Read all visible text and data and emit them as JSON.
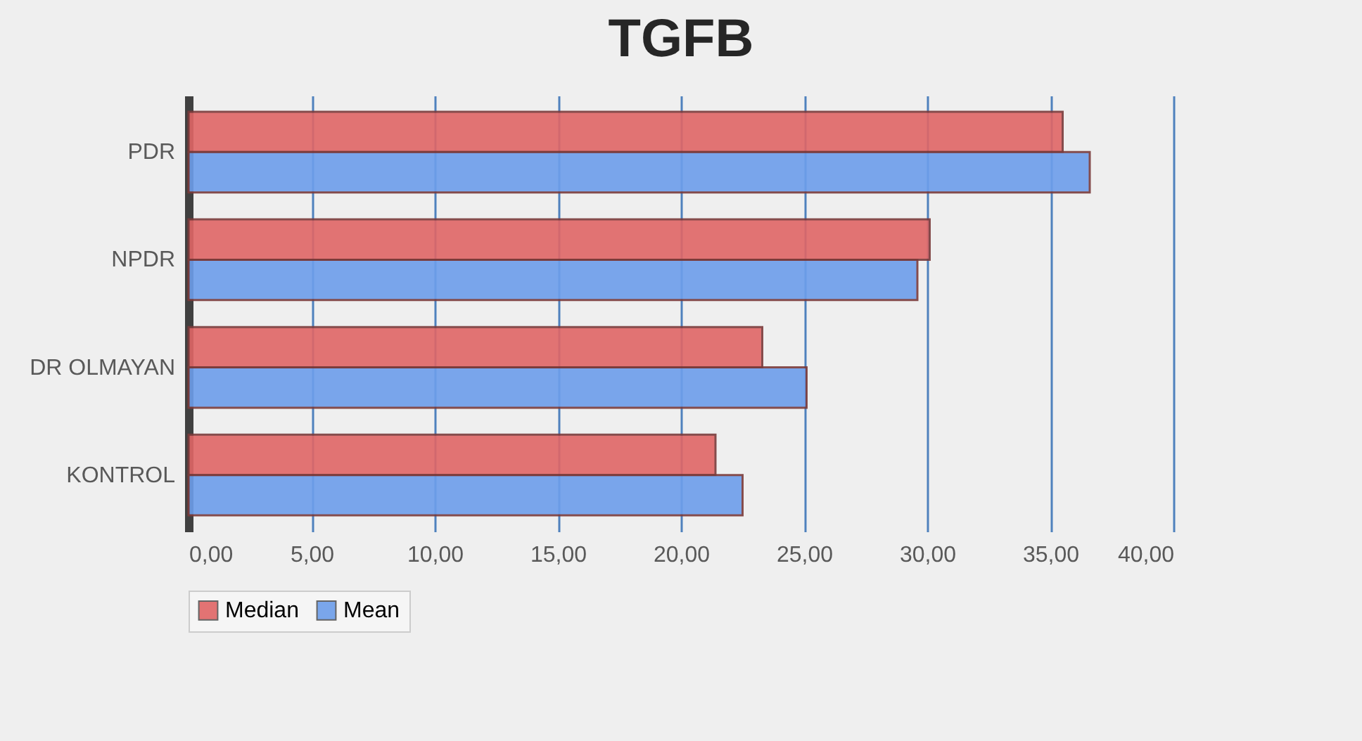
{
  "chart_data": {
    "type": "bar",
    "title": "TGFB",
    "orientation": "horizontal",
    "categories": [
      "PDR",
      "NPDR",
      "DR OLMAYAN",
      "KONTROL"
    ],
    "series": [
      {
        "name": "Median",
        "color": "#e06666",
        "values": [
          35.5,
          30.1,
          23.3,
          21.4
        ]
      },
      {
        "name": "Mean",
        "color": "#6d9eeb",
        "values": [
          36.6,
          29.6,
          25.1,
          22.5
        ]
      }
    ],
    "xlim": [
      0,
      40
    ],
    "xticks": [
      {
        "value": 0,
        "label": "0,00"
      },
      {
        "value": 5,
        "label": "5,00"
      },
      {
        "value": 10,
        "label": "10,00"
      },
      {
        "value": 15,
        "label": "15,00"
      },
      {
        "value": 20,
        "label": "20,00"
      },
      {
        "value": 25,
        "label": "25,00"
      },
      {
        "value": 30,
        "label": "30,00"
      },
      {
        "value": 35,
        "label": "35,00"
      },
      {
        "value": 40,
        "label": "40,00"
      }
    ],
    "grid": "x",
    "legend": "bottom"
  }
}
